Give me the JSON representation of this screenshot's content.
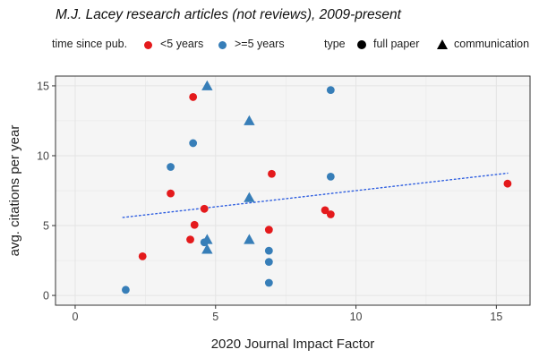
{
  "colors": {
    "lt5": "#e41a1c",
    "ge5": "#377eb8",
    "trend": "#2f5fe0",
    "panel": "#f5f5f5",
    "grid": "#e4e4e4"
  },
  "legend": {
    "time_title": "time since pub.",
    "time_lt5": "<5 years",
    "time_ge5": ">=5 years",
    "type_title": "type",
    "type_full": "full paper",
    "type_comm": "communication"
  },
  "chart_data": {
    "type": "scatter",
    "title": "M.J. Lacey research articles (not reviews), 2009-present",
    "xlabel": "2020 Journal Impact Factor",
    "ylabel": "avg. citations per year",
    "xlim": [
      -0.7,
      16.2
    ],
    "ylim": [
      -0.7,
      15.7
    ],
    "xticks": [
      0,
      5,
      10,
      15
    ],
    "yticks": [
      0,
      5,
      10,
      15
    ],
    "grid": true,
    "legend_position": "top",
    "points": [
      {
        "x": 1.8,
        "y": 0.4,
        "time": "ge5",
        "type": "full"
      },
      {
        "x": 2.4,
        "y": 2.8,
        "time": "lt5",
        "type": "full"
      },
      {
        "x": 3.4,
        "y": 9.2,
        "time": "ge5",
        "type": "full"
      },
      {
        "x": 3.4,
        "y": 7.3,
        "time": "lt5",
        "type": "full"
      },
      {
        "x": 4.1,
        "y": 4.0,
        "time": "lt5",
        "type": "full"
      },
      {
        "x": 4.2,
        "y": 14.2,
        "time": "lt5",
        "type": "full"
      },
      {
        "x": 4.2,
        "y": 10.9,
        "time": "ge5",
        "type": "full"
      },
      {
        "x": 4.25,
        "y": 5.05,
        "time": "lt5",
        "type": "full"
      },
      {
        "x": 4.6,
        "y": 3.8,
        "time": "ge5",
        "type": "full"
      },
      {
        "x": 4.6,
        "y": 6.2,
        "time": "lt5",
        "type": "full"
      },
      {
        "x": 4.7,
        "y": 15.0,
        "time": "ge5",
        "type": "comm"
      },
      {
        "x": 4.7,
        "y": 4.0,
        "time": "ge5",
        "type": "comm"
      },
      {
        "x": 4.7,
        "y": 3.3,
        "time": "ge5",
        "type": "comm"
      },
      {
        "x": 6.2,
        "y": 12.5,
        "time": "ge5",
        "type": "comm"
      },
      {
        "x": 6.2,
        "y": 7.0,
        "time": "ge5",
        "type": "comm"
      },
      {
        "x": 6.2,
        "y": 4.0,
        "time": "ge5",
        "type": "comm"
      },
      {
        "x": 6.9,
        "y": 4.7,
        "time": "lt5",
        "type": "full"
      },
      {
        "x": 6.9,
        "y": 3.2,
        "time": "ge5",
        "type": "full"
      },
      {
        "x": 6.9,
        "y": 2.4,
        "time": "ge5",
        "type": "full"
      },
      {
        "x": 6.9,
        "y": 0.9,
        "time": "ge5",
        "type": "full"
      },
      {
        "x": 7.0,
        "y": 8.7,
        "time": "lt5",
        "type": "full"
      },
      {
        "x": 8.9,
        "y": 6.1,
        "time": "lt5",
        "type": "full"
      },
      {
        "x": 9.1,
        "y": 14.7,
        "time": "ge5",
        "type": "full"
      },
      {
        "x": 9.1,
        "y": 8.5,
        "time": "ge5",
        "type": "full"
      },
      {
        "x": 9.1,
        "y": 5.8,
        "time": "lt5",
        "type": "full"
      },
      {
        "x": 15.4,
        "y": 8.0,
        "time": "lt5",
        "type": "full"
      }
    ],
    "trendline": {
      "x": [
        1.7,
        15.4
      ],
      "y": [
        5.58,
        8.75
      ],
      "style": "dotted"
    }
  }
}
